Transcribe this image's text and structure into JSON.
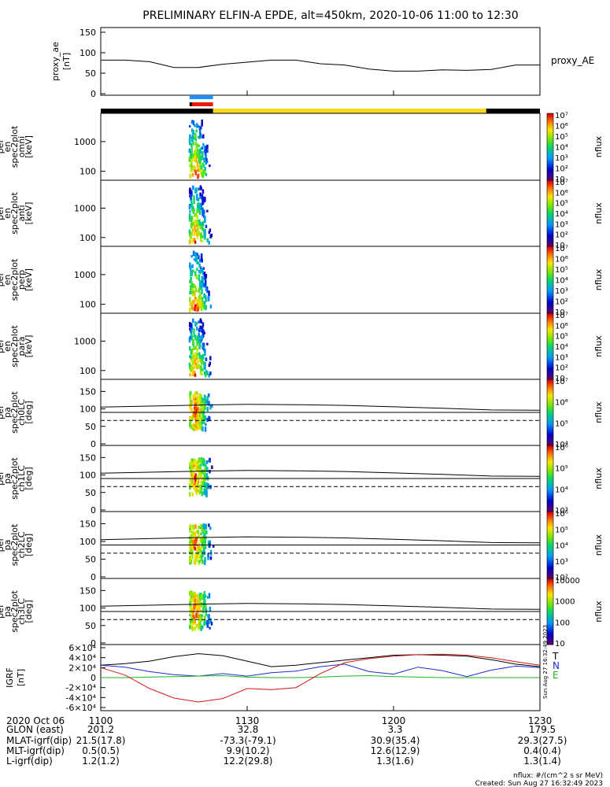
{
  "title": "PRELIMINARY ELFIN-A EPDE, alt=450km, 2020-10-06 11:00 to 12:30",
  "colors": {
    "bar_black": "#000000",
    "bar_yellow": "#f7d81c",
    "tag_blue": "#1e90ff",
    "tag_red": "#e8190f",
    "grf_black": "#000000",
    "grf_blue": "#1c2ec8",
    "grf_red": "#d01818",
    "grf_green": "#22b422"
  },
  "chart_data": [
    {
      "id": "proxy_ae",
      "type": "line",
      "ylabel_lines": [
        "proxy_ae",
        "[nT]"
      ],
      "legend": "proxy_AE",
      "ylim": [
        0,
        150
      ],
      "yticks": [
        "0",
        "50",
        "100",
        "150"
      ],
      "x": [
        0,
        5,
        10,
        15,
        20,
        25,
        30,
        35,
        40,
        45,
        50,
        55,
        60,
        65,
        70,
        75,
        80,
        85,
        90
      ],
      "values": [
        82,
        82,
        78,
        64,
        64,
        72,
        77,
        82,
        82,
        73,
        70,
        60,
        55,
        55,
        58,
        57,
        59,
        70,
        70
      ]
    },
    {
      "id": "omni",
      "type": "heatmap",
      "ylabel_lines": [
        "ela",
        "pef",
        "en",
        "spec2plot",
        "omni",
        "[keV]"
      ],
      "ytick_values": [
        100,
        1000
      ],
      "yticks": [
        "100",
        "1000"
      ],
      "colorbar_ticks": [
        "10",
        "10²",
        "10³",
        "10⁴",
        "10⁵",
        "10⁶",
        "10⁷"
      ],
      "colorbar_label": "nflux"
    },
    {
      "id": "anti",
      "type": "heatmap",
      "ylabel_lines": [
        "ela",
        "pef",
        "en",
        "spec2plot",
        "anti",
        "[keV]"
      ],
      "ytick_values": [
        100,
        1000
      ],
      "yticks": [
        "100",
        "1000"
      ],
      "colorbar_ticks": [
        "10",
        "10²",
        "10³",
        "10⁴",
        "10⁵",
        "10⁶",
        "10⁷"
      ],
      "colorbar_label": "nflux"
    },
    {
      "id": "perp",
      "type": "heatmap",
      "ylabel_lines": [
        "ela",
        "pef",
        "en",
        "spec2plot",
        "perp",
        "[keV]"
      ],
      "ytick_values": [
        100,
        1000
      ],
      "yticks": [
        "100",
        "1000"
      ],
      "colorbar_ticks": [
        "10",
        "10²",
        "10³",
        "10⁴",
        "10⁵",
        "10⁶",
        "10⁷"
      ],
      "colorbar_label": "nflux"
    },
    {
      "id": "para",
      "type": "heatmap",
      "ylabel_lines": [
        "ela",
        "pef",
        "en",
        "spec2plot",
        "para",
        "[keV]"
      ],
      "ytick_values": [
        100,
        1000
      ],
      "yticks": [
        "100",
        "1000"
      ],
      "colorbar_ticks": [
        "10",
        "10²",
        "10³",
        "10⁴",
        "10⁵",
        "10⁶",
        "10⁷"
      ],
      "colorbar_label": "nflux"
    },
    {
      "id": "ch0LC",
      "type": "heatmap",
      "ylabel_lines": [
        "ela",
        "pef",
        "pa",
        "spec2plot",
        "ch0LC",
        "[deg]"
      ],
      "ylim": [
        0,
        180
      ],
      "yticks": [
        "0",
        "50",
        "100",
        "150"
      ],
      "colorbar_ticks": [
        "10⁴",
        "10⁵",
        "10⁶",
        "10⁷"
      ],
      "colorbar_label": "nflux",
      "loss_cone_deg": 67,
      "upper_line": [
        105,
        108,
        111,
        113,
        112,
        110,
        106,
        102,
        97,
        96
      ]
    },
    {
      "id": "ch1LC",
      "type": "heatmap",
      "ylabel_lines": [
        "ela",
        "pef",
        "pa",
        "spec2plot",
        "ch1LC",
        "[deg]"
      ],
      "ylim": [
        0,
        180
      ],
      "yticks": [
        "0",
        "50",
        "100",
        "150"
      ],
      "colorbar_ticks": [
        "10³",
        "10⁴",
        "10⁵",
        "10⁶"
      ],
      "colorbar_label": "nflux",
      "loss_cone_deg": 67,
      "upper_line": [
        105,
        108,
        111,
        113,
        112,
        110,
        106,
        102,
        97,
        96
      ]
    },
    {
      "id": "ch2LC",
      "type": "heatmap",
      "ylabel_lines": [
        "ela",
        "pef",
        "pa",
        "spec2plot",
        "ch2LC",
        "[deg]"
      ],
      "ylim": [
        0,
        180
      ],
      "yticks": [
        "0",
        "50",
        "100",
        "150"
      ],
      "colorbar_ticks": [
        "10²",
        "10³",
        "10⁴",
        "10⁵",
        "10⁶"
      ],
      "colorbar_label": "nflux",
      "loss_cone_deg": 67,
      "upper_line": [
        105,
        108,
        111,
        113,
        112,
        110,
        106,
        102,
        97,
        96
      ]
    },
    {
      "id": "ch3LC",
      "type": "heatmap",
      "ylabel_lines": [
        "ela",
        "pef",
        "pa",
        "spec2plot",
        "ch3LC",
        "[deg]"
      ],
      "ylim": [
        0,
        180
      ],
      "yticks": [
        "0",
        "50",
        "100",
        "150"
      ],
      "colorbar_ticks": [
        "10",
        "100",
        "1000",
        "10000"
      ],
      "colorbar_label": "nflux",
      "loss_cone_deg": 67,
      "upper_line": [
        105,
        108,
        111,
        113,
        112,
        110,
        106,
        102,
        97,
        96
      ]
    },
    {
      "id": "igrf",
      "type": "line",
      "ylabel_lines": [
        "IGRF",
        "[nT]"
      ],
      "ylim": [
        -60000,
        60000
      ],
      "yticks": [
        "-6×10⁴",
        "-4×10⁴",
        "-2×10⁴",
        "0",
        "2×10⁴",
        "4×10⁴",
        "6×10⁴"
      ],
      "x": [
        0,
        5,
        10,
        15,
        20,
        25,
        30,
        35,
        40,
        45,
        50,
        55,
        60,
        65,
        70,
        75,
        80,
        85,
        90
      ],
      "series": [
        {
          "name": "T",
          "color": "#000000",
          "values": [
            25000,
            28000,
            33000,
            42000,
            48000,
            44000,
            33000,
            22000,
            25000,
            30000,
            35000,
            40000,
            45000,
            46000,
            45000,
            43000,
            36000,
            27000,
            22000
          ]
        },
        {
          "name": "N",
          "color": "#1c2ec8",
          "values": [
            25000,
            21000,
            12000,
            6000,
            3000,
            8000,
            3000,
            10000,
            13000,
            22000,
            27000,
            12000,
            7000,
            21000,
            14000,
            2000,
            15000,
            23000,
            20000
          ]
        },
        {
          "name": "E",
          "color": "#22b422",
          "values": [
            0,
            0,
            1000,
            2000,
            3000,
            4000,
            1000,
            0,
            0,
            1000,
            3000,
            4000,
            2000,
            1000,
            0,
            0,
            0,
            0,
            0
          ]
        },
        {
          "name": "",
          "color": "#d01818",
          "values": [
            20000,
            5000,
            -22000,
            -41000,
            -49000,
            -42000,
            -22000,
            -24000,
            -20000,
            8000,
            30000,
            38000,
            43000,
            46000,
            47000,
            45000,
            40000,
            32000,
            25000
          ]
        }
      ],
      "legend_letters": [
        "T",
        "N",
        "E"
      ]
    }
  ],
  "spectrogram_time": {
    "start_min": 18,
    "end_min": 23
  },
  "xaxis": {
    "ticks": [
      "1100",
      "1130",
      "1200",
      "1230"
    ],
    "tick_minutes": [
      0,
      30,
      60,
      90
    ]
  },
  "footer": {
    "rows": [
      {
        "label": "2020 Oct 06",
        "v1": "1100",
        "v2": "1130",
        "v3": "1200",
        "v4": "1230"
      },
      {
        "label": "GLON (east)",
        "v1": "201.2",
        "v2": "32.8",
        "v3": "3.3",
        "v4": "179.5"
      },
      {
        "label": "MLAT-igrf(dip)",
        "v1": "21.5(17.8)",
        "v2": "-73.3(-79.1)",
        "v3": "30.9(35.4)",
        "v4": "29.3(27.5)"
      },
      {
        "label": "MLT-igrf(dip)",
        "v1": "0.5(0.5)",
        "v2": "9.9(10.2)",
        "v3": "12.6(12.9)",
        "v4": "0.4(0.4)"
      },
      {
        "label": "L-igrf(dip)",
        "v1": "1.2(1.2)",
        "v2": "12.2(29.8)",
        "v3": "1.3(1.6)",
        "v4": "1.3(1.4)"
      }
    ],
    "nflux_units": "nflux: #/(cm^2 s sr MeV)",
    "created": "Created: Sun Aug 27 16:32:49 2023",
    "side_stamp": "Sun Aug 27 16:32:49 2023"
  }
}
